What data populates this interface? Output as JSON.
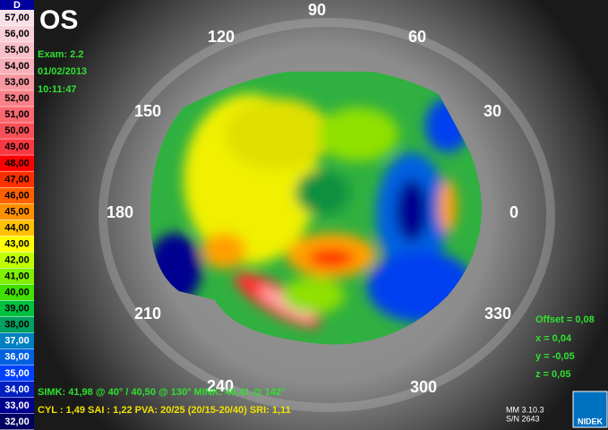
{
  "eye": "OS",
  "exam": [
    "Exam: 2.2",
    "01/02/2013",
    "10:11:47"
  ],
  "angles": [
    "90",
    "60",
    "30",
    "0",
    "330",
    "300",
    "240",
    "210",
    "180",
    "150",
    "120"
  ],
  "indices": [
    "SIMK: 41,98 @ 40° / 40,50 @ 130°  MINK: 40,41 @ 142°",
    "CYL : 1,49  SAI : 1,22  PVA: 20/25 (20/15-20/40)  SRI: 1,11"
  ],
  "offset": [
    "Offset = 0,08",
    "x = 0,04",
    "y = -0,05",
    "z = 0,05"
  ],
  "footer": [
    "MM 3.10.3",
    "S/N 2643",
    "NIDEK"
  ],
  "scale": {
    "unit": "D",
    "labels": [
      "57,00",
      "56,00",
      "55,00",
      "54,00",
      "53,00",
      "52,00",
      "51,00",
      "50,00",
      "49,00",
      "48,00",
      "47,00",
      "46,00",
      "45,00",
      "44,00",
      "43,00",
      "42,00",
      "41,00",
      "40,00",
      "39,00",
      "38,00",
      "37,00",
      "36,00",
      "35,00",
      "34,00",
      "33,00",
      "32,00"
    ],
    "colors": [
      "#f8e0e8",
      "#f8d0d8",
      "#f8c0c8",
      "#f8b0b8",
      "#f898a0",
      "#f88088",
      "#f86870",
      "#f85058",
      "#f83840",
      "#ff0000",
      "#ff3000",
      "#ff6000",
      "#ff9000",
      "#ffc000",
      "#ffff00",
      "#c0ff00",
      "#80f000",
      "#40e000",
      "#00c040",
      "#00a060",
      "#0080c0",
      "#0060e0",
      "#0040ff",
      "#0020c0",
      "#000090",
      "#000060"
    ]
  }
}
